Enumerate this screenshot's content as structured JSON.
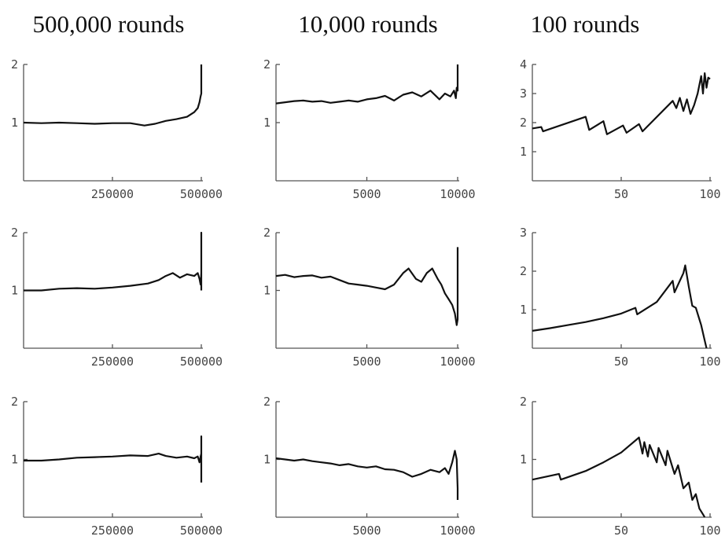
{
  "column_titles": [
    "500,000 rounds",
    "10,000 rounds",
    "100 rounds"
  ],
  "chart_data": [
    {
      "type": "line",
      "title": "500,000 rounds",
      "xlim": [
        0,
        500000
      ],
      "ylim": [
        0,
        2
      ],
      "xticks": [
        {
          "v": 250000,
          "label": "250000"
        },
        {
          "v": 500000,
          "label": "500000"
        }
      ],
      "yticks": [
        {
          "v": 1,
          "label": "1"
        },
        {
          "v": 2,
          "label": "2"
        }
      ],
      "series": [
        {
          "x": [
            0,
            50000,
            100000,
            150000,
            200000,
            250000,
            300000,
            340000,
            370000,
            400000,
            430000,
            460000,
            480000,
            490000,
            495000,
            498000,
            500000,
            500000
          ],
          "y": [
            1.0,
            0.99,
            1.0,
            0.99,
            0.98,
            0.99,
            0.99,
            0.95,
            0.98,
            1.03,
            1.06,
            1.1,
            1.18,
            1.25,
            1.35,
            1.45,
            1.5,
            2.0
          ]
        }
      ]
    },
    {
      "type": "line",
      "title": "10,000 rounds",
      "xlim": [
        0,
        10000
      ],
      "ylim": [
        0,
        2
      ],
      "xticks": [
        {
          "v": 5000,
          "label": "5000"
        },
        {
          "v": 10000,
          "label": "10000"
        }
      ],
      "yticks": [
        {
          "v": 1,
          "label": "1"
        },
        {
          "v": 2,
          "label": "2"
        }
      ],
      "series": [
        {
          "x": [
            0,
            500,
            1000,
            1500,
            2000,
            2500,
            3000,
            3500,
            4000,
            4500,
            5000,
            5500,
            6000,
            6500,
            7000,
            7500,
            8000,
            8500,
            9000,
            9300,
            9600,
            9800,
            9900,
            9950,
            10000,
            10000
          ],
          "y": [
            1.33,
            1.35,
            1.37,
            1.38,
            1.36,
            1.37,
            1.34,
            1.36,
            1.38,
            1.36,
            1.4,
            1.42,
            1.46,
            1.38,
            1.48,
            1.52,
            1.45,
            1.55,
            1.4,
            1.5,
            1.45,
            1.55,
            1.42,
            1.6,
            1.55,
            2.0
          ]
        }
      ]
    },
    {
      "type": "line",
      "title": "100 rounds",
      "xlim": [
        0,
        100
      ],
      "ylim": [
        0,
        4
      ],
      "xticks": [
        {
          "v": 50,
          "label": "50"
        },
        {
          "v": 100,
          "label": "100"
        }
      ],
      "yticks": [
        {
          "v": 1,
          "label": "1"
        },
        {
          "v": 2,
          "label": "2"
        },
        {
          "v": 3,
          "label": "3"
        },
        {
          "v": 4,
          "label": "4"
        }
      ],
      "series": [
        {
          "x": [
            0,
            5,
            6,
            30,
            32,
            40,
            42,
            51,
            53,
            60,
            62,
            79,
            81,
            83,
            85,
            87,
            89,
            91,
            93,
            95,
            96,
            97,
            98,
            99,
            100
          ],
          "y": [
            1.8,
            1.85,
            1.7,
            2.2,
            1.75,
            2.05,
            1.6,
            1.9,
            1.65,
            1.95,
            1.7,
            2.75,
            2.5,
            2.85,
            2.4,
            2.8,
            2.3,
            2.6,
            3.0,
            3.6,
            3.0,
            3.7,
            3.2,
            3.55,
            3.5
          ]
        }
      ]
    },
    {
      "type": "line",
      "title": "",
      "xlim": [
        0,
        500000
      ],
      "ylim": [
        0,
        2
      ],
      "xticks": [
        {
          "v": 250000,
          "label": "250000"
        },
        {
          "v": 500000,
          "label": "500000"
        }
      ],
      "yticks": [
        {
          "v": 1,
          "label": "1"
        },
        {
          "v": 2,
          "label": "2"
        }
      ],
      "series": [
        {
          "x": [
            0,
            50000,
            100000,
            150000,
            200000,
            250000,
            300000,
            350000,
            380000,
            400000,
            420000,
            440000,
            460000,
            480000,
            490000,
            495000,
            498000,
            500000,
            500000,
            500000
          ],
          "y": [
            1.0,
            1.0,
            1.03,
            1.04,
            1.03,
            1.05,
            1.08,
            1.12,
            1.18,
            1.25,
            1.3,
            1.22,
            1.28,
            1.25,
            1.3,
            1.2,
            1.1,
            1.3,
            2.0,
            1.0
          ]
        }
      ]
    },
    {
      "type": "line",
      "title": "",
      "xlim": [
        0,
        10000
      ],
      "ylim": [
        0,
        2
      ],
      "xticks": [
        {
          "v": 5000,
          "label": "5000"
        },
        {
          "v": 10000,
          "label": "10000"
        }
      ],
      "yticks": [
        {
          "v": 1,
          "label": "1"
        },
        {
          "v": 2,
          "label": "2"
        }
      ],
      "series": [
        {
          "x": [
            0,
            500,
            1000,
            1500,
            2000,
            2500,
            3000,
            3500,
            4000,
            4500,
            5000,
            5500,
            6000,
            6500,
            7000,
            7300,
            7700,
            8000,
            8300,
            8600,
            8900,
            9100,
            9300,
            9500,
            9700,
            9850,
            9950,
            10000,
            10000
          ],
          "y": [
            1.25,
            1.27,
            1.23,
            1.25,
            1.26,
            1.22,
            1.24,
            1.18,
            1.12,
            1.1,
            1.08,
            1.05,
            1.02,
            1.1,
            1.3,
            1.38,
            1.2,
            1.15,
            1.3,
            1.38,
            1.2,
            1.1,
            0.95,
            0.85,
            0.75,
            0.6,
            0.4,
            0.5,
            1.75
          ]
        }
      ]
    },
    {
      "type": "line",
      "title": "",
      "xlim": [
        0,
        100
      ],
      "ylim": [
        0,
        3
      ],
      "xticks": [
        {
          "v": 50,
          "label": "50"
        },
        {
          "v": 100,
          "label": "100"
        }
      ],
      "yticks": [
        {
          "v": 1,
          "label": "1"
        },
        {
          "v": 2,
          "label": "2"
        },
        {
          "v": 3,
          "label": "3"
        }
      ],
      "series": [
        {
          "x": [
            0,
            10,
            20,
            30,
            40,
            50,
            58,
            59,
            70,
            79,
            80,
            85,
            86,
            88,
            90,
            92,
            95,
            97,
            98
          ],
          "y": [
            0.45,
            0.52,
            0.6,
            0.68,
            0.78,
            0.9,
            1.05,
            0.88,
            1.2,
            1.75,
            1.45,
            1.95,
            2.15,
            1.6,
            1.1,
            1.05,
            0.6,
            0.2,
            0.0
          ]
        }
      ]
    },
    {
      "type": "line",
      "title": "",
      "xlim": [
        0,
        500000
      ],
      "ylim": [
        0,
        2
      ],
      "xticks": [
        {
          "v": 250000,
          "label": "250000"
        },
        {
          "v": 500000,
          "label": "500000"
        }
      ],
      "yticks": [
        {
          "v": 1,
          "label": "1"
        },
        {
          "v": 2,
          "label": "2"
        }
      ],
      "series": [
        {
          "x": [
            0,
            50000,
            100000,
            150000,
            200000,
            250000,
            300000,
            350000,
            380000,
            400000,
            430000,
            460000,
            480000,
            490000,
            495000,
            498000,
            500000,
            500000,
            500000
          ],
          "y": [
            0.98,
            0.98,
            1.0,
            1.03,
            1.04,
            1.05,
            1.07,
            1.06,
            1.1,
            1.06,
            1.03,
            1.05,
            1.02,
            1.05,
            0.95,
            1.05,
            1.1,
            1.4,
            0.6
          ]
        }
      ]
    },
    {
      "type": "line",
      "title": "",
      "xlim": [
        0,
        10000
      ],
      "ylim": [
        0,
        2
      ],
      "xticks": [
        {
          "v": 5000,
          "label": "5000"
        },
        {
          "v": 10000,
          "label": "10000"
        }
      ],
      "yticks": [
        {
          "v": 1,
          "label": "1"
        },
        {
          "v": 2,
          "label": "2"
        }
      ],
      "series": [
        {
          "x": [
            0,
            500,
            1000,
            1500,
            2000,
            2500,
            3000,
            3500,
            4000,
            4500,
            5000,
            5500,
            6000,
            6500,
            7000,
            7500,
            8000,
            8500,
            9000,
            9300,
            9500,
            9700,
            9850,
            9950,
            10000,
            10000
          ],
          "y": [
            1.02,
            1.0,
            0.98,
            1.0,
            0.97,
            0.95,
            0.93,
            0.9,
            0.92,
            0.88,
            0.86,
            0.88,
            0.83,
            0.82,
            0.78,
            0.7,
            0.75,
            0.82,
            0.78,
            0.85,
            0.75,
            0.95,
            1.15,
            1.0,
            0.5,
            0.3
          ]
        }
      ]
    },
    {
      "type": "line",
      "title": "",
      "xlim": [
        0,
        100
      ],
      "ylim": [
        0,
        2
      ],
      "xticks": [
        {
          "v": 50,
          "label": "50"
        },
        {
          "v": 100,
          "label": "100"
        }
      ],
      "yticks": [
        {
          "v": 1,
          "label": "1"
        },
        {
          "v": 2,
          "label": "2"
        }
      ],
      "series": [
        {
          "x": [
            0,
            15,
            16,
            30,
            40,
            50,
            60,
            62,
            63,
            65,
            66,
            70,
            71,
            75,
            76,
            80,
            82,
            85,
            88,
            90,
            92,
            94,
            96,
            97
          ],
          "y": [
            0.65,
            0.75,
            0.65,
            0.8,
            0.95,
            1.12,
            1.38,
            1.1,
            1.3,
            1.05,
            1.25,
            0.95,
            1.2,
            0.9,
            1.15,
            0.75,
            0.9,
            0.5,
            0.6,
            0.3,
            0.4,
            0.15,
            0.05,
            0.0
          ]
        }
      ]
    }
  ]
}
